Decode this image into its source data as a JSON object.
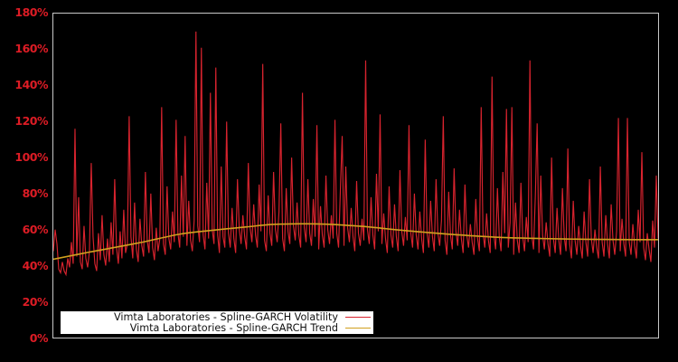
{
  "window": {
    "background": "#000000"
  },
  "chart_data": {
    "type": "line",
    "title": "",
    "xlabel": "",
    "ylabel": "",
    "ylim": [
      0,
      180
    ],
    "x_tick_labels": [],
    "grid": false,
    "plot_background": "#000000",
    "plot_border_color": "#c8c8c8",
    "axis_label_color": "#dd1c25",
    "legend": {
      "position": "bottom-left",
      "background": "#ffffff",
      "text_color": "#111111",
      "sample_side": "right"
    },
    "y_ticks": [
      {
        "value": 0,
        "label": "0%"
      },
      {
        "value": 20,
        "label": "20%"
      },
      {
        "value": 40,
        "label": "40%"
      },
      {
        "value": 60,
        "label": "60%"
      },
      {
        "value": 80,
        "label": "80%"
      },
      {
        "value": 100,
        "label": "100%"
      },
      {
        "value": 120,
        "label": "120%"
      },
      {
        "value": 140,
        "label": "140%"
      },
      {
        "value": 160,
        "label": "160%"
      },
      {
        "value": 180,
        "label": "180%"
      }
    ],
    "series": [
      {
        "name": "Vimta Laboratories - Spline-GARCH Volatility",
        "color": "#d8232e",
        "style": "line",
        "unit": "%",
        "values": [
          48,
          60,
          52,
          38,
          36,
          42,
          37,
          35,
          44,
          39,
          53,
          41,
          116,
          45,
          78,
          42,
          38,
          62,
          44,
          39,
          48,
          97,
          56,
          41,
          37,
          58,
          43,
          68,
          46,
          40,
          55,
          42,
          64,
          46,
          88,
          50,
          41,
          59,
          44,
          71,
          47,
          52,
          123,
          56,
          44,
          75,
          49,
          42,
          66,
          51,
          45,
          92,
          54,
          47,
          80,
          50,
          43,
          61,
          48,
          55,
          128,
          52,
          46,
          84,
          55,
          49,
          70,
          53,
          121,
          58,
          50,
          90,
          56,
          112,
          51,
          76,
          54,
          48,
          65,
          170,
          62,
          53,
          161,
          57,
          49,
          86,
          55,
          136,
          60,
          52,
          150,
          57,
          47,
          95,
          56,
          50,
          120,
          58,
          50,
          72,
          55,
          47,
          88,
          60,
          52,
          68,
          56,
          49,
          97,
          61,
          53,
          74,
          57,
          50,
          85,
          59,
          152,
          54,
          48,
          79,
          58,
          51,
          92,
          60,
          53,
          70,
          119,
          55,
          48,
          83,
          59,
          52,
          100,
          62,
          54,
          75,
          57,
          50,
          136,
          61,
          53,
          88,
          58,
          51,
          77,
          56,
          118,
          49,
          73,
          57,
          50,
          90,
          60,
          52,
          68,
          55,
          121,
          58,
          50,
          82,
          112,
          51,
          95,
          61,
          53,
          72,
          56,
          48,
          87,
          58,
          51,
          66,
          54,
          154,
          60,
          52,
          78,
          57,
          49,
          91,
          59,
          124,
          52,
          69,
          55,
          47,
          84,
          57,
          50,
          74,
          56,
          48,
          93,
          59,
          51,
          67,
          54,
          118,
          58,
          50,
          80,
          57,
          49,
          70,
          55,
          47,
          110,
          58,
          50,
          76,
          56,
          48,
          88,
          58,
          51,
          65,
          123,
          54,
          46,
          81,
          57,
          49,
          94,
          59,
          51,
          71,
          55,
          47,
          85,
          57,
          50,
          63,
          53,
          46,
          77,
          55,
          48,
          128,
          58,
          50,
          69,
          54,
          47,
          145,
          57,
          49,
          83,
          56,
          48,
          92,
          58,
          127,
          50,
          64,
          128,
          46,
          75,
          54,
          47,
          86,
          56,
          48,
          67,
          53,
          154,
          57,
          49,
          79,
          119,
          47,
          90,
          57,
          49,
          64,
          52,
          45,
          100,
          55,
          47,
          72,
          54,
          46,
          83,
          56,
          48,
          105,
          52,
          44,
          76,
          54,
          46,
          62,
          51,
          44,
          70,
          53,
          45,
          88,
          55,
          47,
          60,
          50,
          44,
          95,
          53,
          45,
          68,
          52,
          44,
          74,
          54,
          46,
          59,
          122,
          48,
          66,
          52,
          45,
          122,
          53,
          46,
          63,
          51,
          44,
          71,
          53,
          103,
          50,
          43,
          58,
          49,
          42,
          65,
          50,
          90,
          55
        ]
      },
      {
        "name": "Vimta Laboratories - Spline-GARCH Trend",
        "color": "#d0a01e",
        "style": "spline",
        "unit": "%",
        "points": [
          [
            0,
            43.5
          ],
          [
            0.06,
            47.5
          ],
          [
            0.14,
            52.5
          ],
          [
            0.21,
            57.5
          ],
          [
            0.26,
            59.5
          ],
          [
            0.32,
            61.5
          ],
          [
            0.36,
            62.8
          ],
          [
            0.41,
            63.2
          ],
          [
            0.45,
            63.0
          ],
          [
            0.51,
            61.8
          ],
          [
            0.58,
            59.5
          ],
          [
            0.66,
            57.3
          ],
          [
            0.73,
            55.8
          ],
          [
            0.81,
            55.0
          ],
          [
            0.88,
            54.6
          ],
          [
            0.96,
            54.4
          ],
          [
            1,
            54.4
          ]
        ]
      }
    ]
  }
}
